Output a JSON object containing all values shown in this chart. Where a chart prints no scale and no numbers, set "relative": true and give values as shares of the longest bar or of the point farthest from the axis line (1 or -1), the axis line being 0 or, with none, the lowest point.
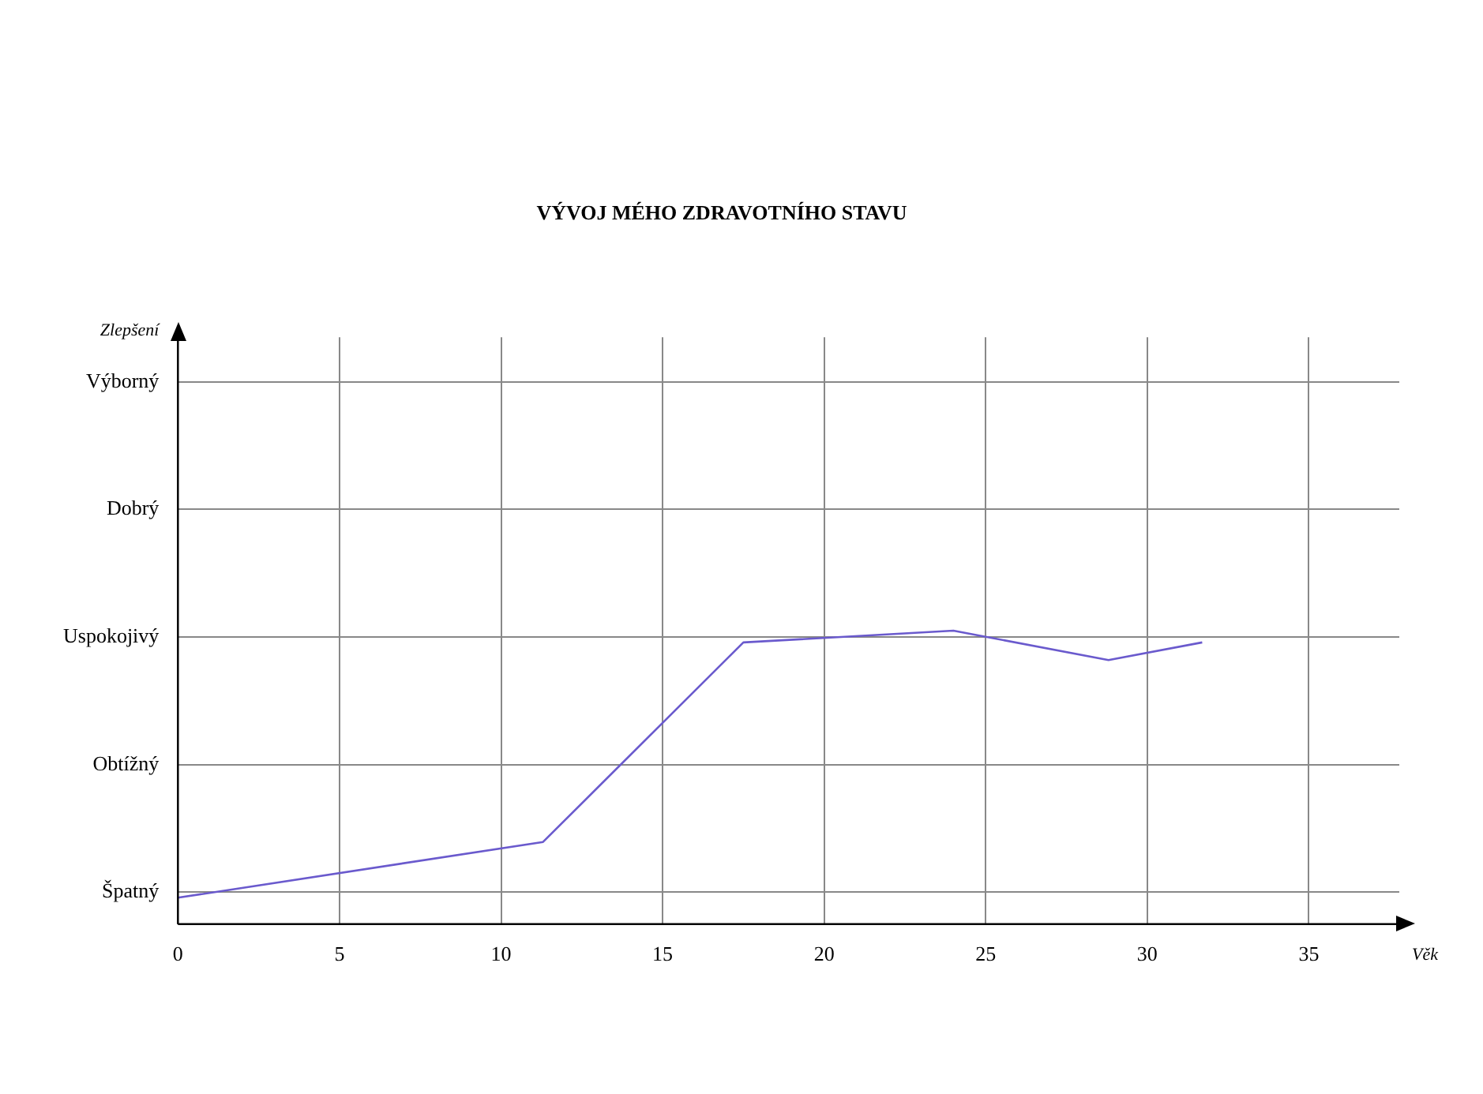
{
  "chart_data": {
    "type": "line",
    "title": "VÝVOJ MÉHO ZDRAVOTNÍHO STAVU",
    "xlabel": "Věk",
    "annotations": [
      "Zlepšení"
    ],
    "relative": true,
    "y_categories": [
      "Výborný",
      "Dobrý",
      "Uspokojivý",
      "Obtížný",
      "Špatný"
    ],
    "series": [
      {
        "color": "#6a5acd",
        "x": [
          0,
          11.3,
          17.5,
          24,
          28.8,
          31.7
        ],
        "values": [
          0.09,
          0.28,
          0.96,
          1,
          0.9,
          0.96
        ]
      }
    ],
    "xlim": [
      0,
      37.8
    ],
    "xticks": [
      0,
      5,
      10,
      15,
      20,
      25,
      30,
      35
    ],
    "grid": true,
    "legend": false,
    "marker": "none",
    "line_style": "solid"
  }
}
